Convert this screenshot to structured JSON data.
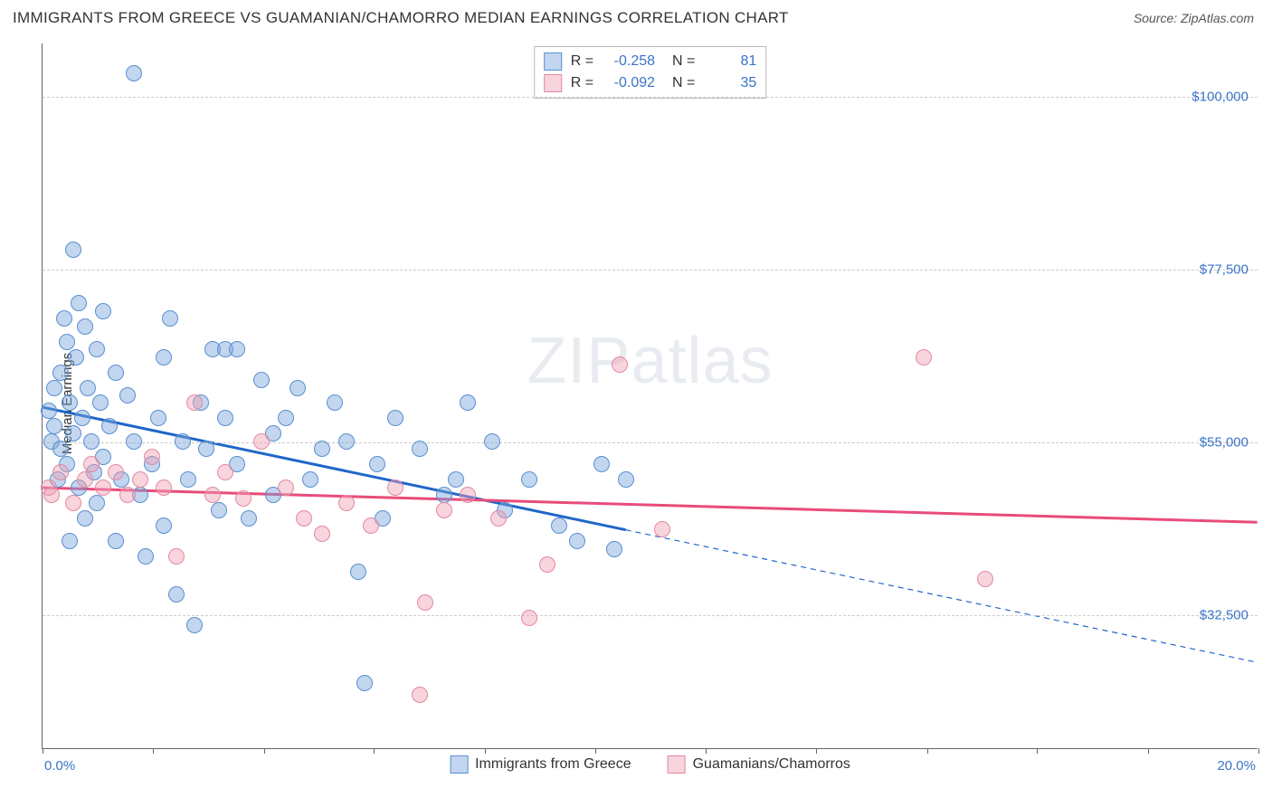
{
  "header": {
    "title": "IMMIGRANTS FROM GREECE VS GUAMANIAN/CHAMORRO MEDIAN EARNINGS CORRELATION CHART",
    "source": "Source: ZipAtlas.com"
  },
  "chart": {
    "type": "scatter",
    "ylabel": "Median Earnings",
    "x_range": [
      0,
      20
    ],
    "y_range": [
      15000,
      107000
    ],
    "x_min_label": "0.0%",
    "x_max_label": "20.0%",
    "y_ticks": [
      32500,
      55000,
      77500,
      100000
    ],
    "y_tick_labels": [
      "$32,500",
      "$55,000",
      "$77,500",
      "$100,000"
    ],
    "x_tick_positions": [
      0,
      1.82,
      3.64,
      5.45,
      7.27,
      9.09,
      10.91,
      12.73,
      14.55,
      16.36,
      18.18,
      20
    ],
    "grid_color": "#cccccc",
    "background_color": "#ffffff",
    "axis_color": "#666666",
    "watermark": "ZIPatlas",
    "series": [
      {
        "name": "Immigrants from Greece",
        "marker_fill": "rgba(120,165,220,0.45)",
        "marker_stroke": "#5a8fd0",
        "marker_radius": 9,
        "line_color": "#1f66c9",
        "line_width": 3,
        "r_value": "-0.258",
        "n_value": "81",
        "trend_solid": {
          "x1": 0,
          "y1": 59500,
          "x2": 9.6,
          "y2": 43500
        },
        "trend_dash": {
          "x1": 9.6,
          "y1": 43500,
          "x2": 20,
          "y2": 26200
        },
        "points": [
          [
            0.1,
            59000
          ],
          [
            0.15,
            55000
          ],
          [
            0.2,
            62000
          ],
          [
            0.2,
            57000
          ],
          [
            0.25,
            50000
          ],
          [
            0.3,
            64000
          ],
          [
            0.3,
            54000
          ],
          [
            0.35,
            71000
          ],
          [
            0.4,
            68000
          ],
          [
            0.4,
            52000
          ],
          [
            0.45,
            60000
          ],
          [
            0.5,
            80000
          ],
          [
            0.5,
            56000
          ],
          [
            0.55,
            66000
          ],
          [
            0.6,
            73000
          ],
          [
            0.6,
            49000
          ],
          [
            0.65,
            58000
          ],
          [
            0.7,
            70000
          ],
          [
            0.7,
            45000
          ],
          [
            0.75,
            62000
          ],
          [
            0.8,
            55000
          ],
          [
            0.85,
            51000
          ],
          [
            0.9,
            67000
          ],
          [
            0.9,
            47000
          ],
          [
            0.95,
            60000
          ],
          [
            1.0,
            72000
          ],
          [
            1.0,
            53000
          ],
          [
            1.1,
            57000
          ],
          [
            1.2,
            64000
          ],
          [
            1.2,
            42000
          ],
          [
            1.3,
            50000
          ],
          [
            1.4,
            61000
          ],
          [
            1.5,
            103000
          ],
          [
            1.5,
            55000
          ],
          [
            1.6,
            48000
          ],
          [
            1.7,
            40000
          ],
          [
            1.8,
            52000
          ],
          [
            1.9,
            58000
          ],
          [
            2.0,
            66000
          ],
          [
            2.0,
            44000
          ],
          [
            2.1,
            71000
          ],
          [
            2.2,
            35000
          ],
          [
            2.3,
            55000
          ],
          [
            2.4,
            50000
          ],
          [
            2.5,
            31000
          ],
          [
            2.6,
            60000
          ],
          [
            2.7,
            54000
          ],
          [
            2.8,
            67000
          ],
          [
            2.9,
            46000
          ],
          [
            3.0,
            67000
          ],
          [
            3.0,
            58000
          ],
          [
            3.2,
            67000
          ],
          [
            3.2,
            52000
          ],
          [
            3.4,
            45000
          ],
          [
            3.6,
            63000
          ],
          [
            3.8,
            56000
          ],
          [
            3.8,
            48000
          ],
          [
            4.0,
            58000
          ],
          [
            4.2,
            62000
          ],
          [
            4.4,
            50000
          ],
          [
            4.6,
            54000
          ],
          [
            4.8,
            60000
          ],
          [
            5.0,
            55000
          ],
          [
            5.2,
            38000
          ],
          [
            5.3,
            23500
          ],
          [
            5.5,
            52000
          ],
          [
            5.6,
            45000
          ],
          [
            5.8,
            58000
          ],
          [
            6.2,
            54000
          ],
          [
            6.6,
            48000
          ],
          [
            6.8,
            50000
          ],
          [
            7.0,
            60000
          ],
          [
            7.4,
            55000
          ],
          [
            7.6,
            46000
          ],
          [
            8.0,
            50000
          ],
          [
            8.5,
            44000
          ],
          [
            8.8,
            42000
          ],
          [
            9.2,
            52000
          ],
          [
            9.4,
            41000
          ],
          [
            9.6,
            50000
          ],
          [
            0.45,
            42000
          ]
        ]
      },
      {
        "name": "Guamanians/Chamorros",
        "marker_fill": "rgba(240,160,180,0.45)",
        "marker_stroke": "#e389a2",
        "marker_radius": 9,
        "line_color": "#e84c7a",
        "line_width": 3,
        "r_value": "-0.092",
        "n_value": "35",
        "trend_solid": {
          "x1": 0,
          "y1": 49000,
          "x2": 20,
          "y2": 44500
        },
        "trend_dash": null,
        "points": [
          [
            0.1,
            49000
          ],
          [
            0.15,
            48000
          ],
          [
            0.3,
            51000
          ],
          [
            0.5,
            47000
          ],
          [
            0.7,
            50000
          ],
          [
            0.8,
            52000
          ],
          [
            1.0,
            49000
          ],
          [
            1.2,
            51000
          ],
          [
            1.4,
            48000
          ],
          [
            1.6,
            50000
          ],
          [
            1.8,
            53000
          ],
          [
            2.0,
            49000
          ],
          [
            2.2,
            40000
          ],
          [
            2.5,
            60000
          ],
          [
            2.8,
            48000
          ],
          [
            3.0,
            51000
          ],
          [
            3.3,
            47500
          ],
          [
            3.6,
            55000
          ],
          [
            4.0,
            49000
          ],
          [
            4.3,
            45000
          ],
          [
            4.6,
            43000
          ],
          [
            5.0,
            47000
          ],
          [
            5.4,
            44000
          ],
          [
            5.8,
            49000
          ],
          [
            6.2,
            22000
          ],
          [
            6.3,
            34000
          ],
          [
            6.6,
            46000
          ],
          [
            7.0,
            48000
          ],
          [
            7.5,
            45000
          ],
          [
            8.0,
            32000
          ],
          [
            8.3,
            39000
          ],
          [
            9.5,
            65000
          ],
          [
            10.2,
            43500
          ],
          [
            14.5,
            66000
          ],
          [
            15.5,
            37000
          ]
        ]
      }
    ],
    "bottom_legend": [
      {
        "swatch_fill": "rgba(120,165,220,0.45)",
        "swatch_stroke": "#5a8fd0",
        "label": "Immigrants from Greece"
      },
      {
        "swatch_fill": "rgba(240,160,180,0.45)",
        "swatch_stroke": "#e389a2",
        "label": "Guamanians/Chamorros"
      }
    ]
  }
}
